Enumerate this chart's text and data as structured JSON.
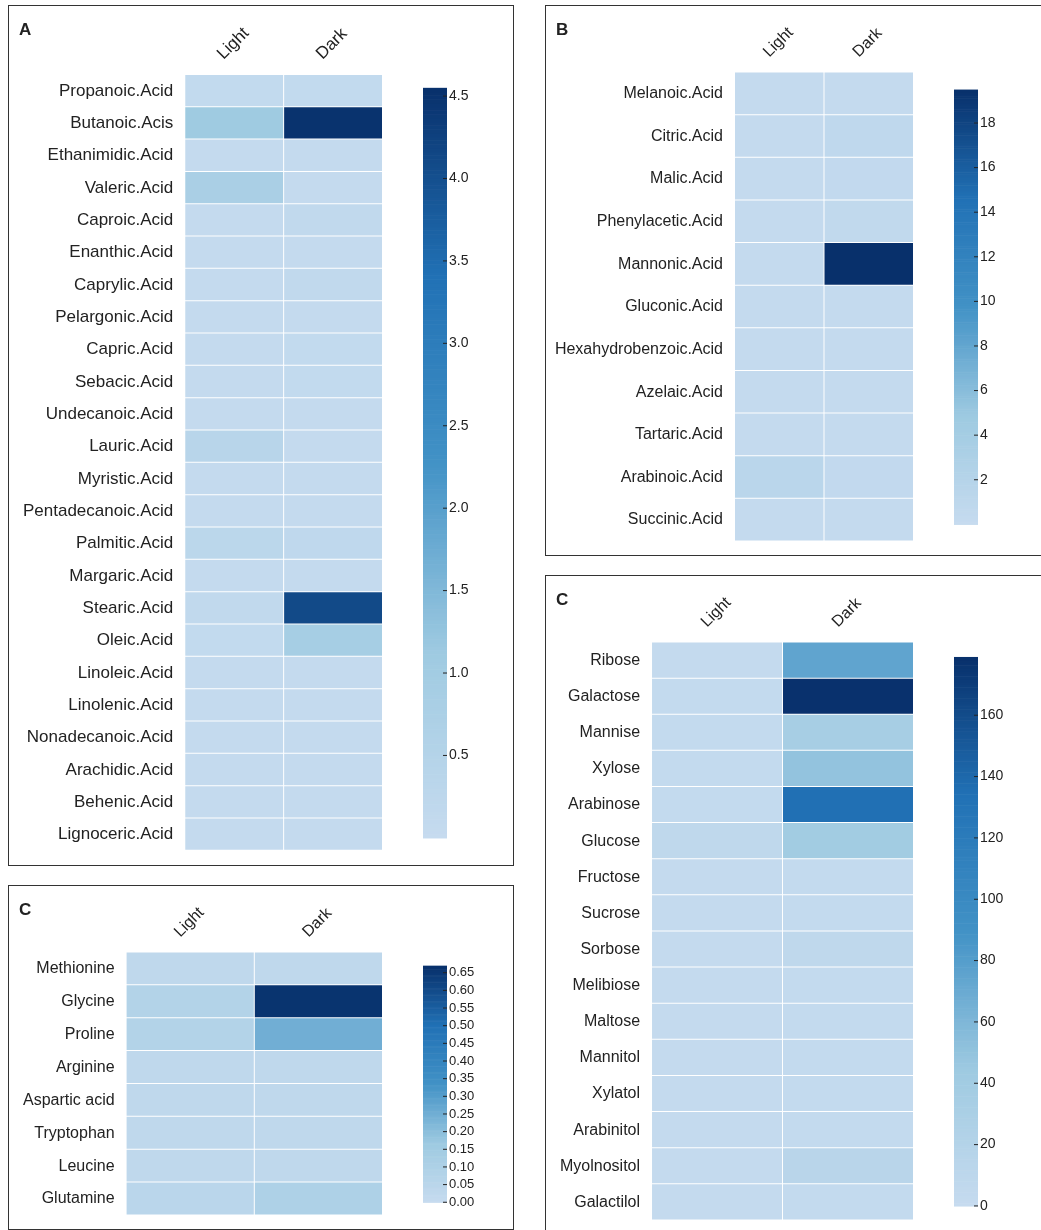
{
  "chart_data": [
    {
      "type": "heatmap",
      "title": "A",
      "categories": [
        "Light",
        "Dark"
      ],
      "y_categories": [
        "Propanoic.Acid",
        "Butanoic.Acis",
        "Ethanimidic.Acid",
        "Valeric.Acid",
        "Caproic.Acid",
        "Enanthic.Acid",
        "Caprylic.Acid",
        "Pelargonic.Acid",
        "Capric.Acid",
        "Sebacic.Acid",
        "Undecanoic.Acid",
        "Lauric.Acid",
        "Myristic.Acid",
        "Pentadecanoic.Acid",
        "Palmitic.Acid",
        "Margaric.Acid",
        "Stearic.Acid",
        "Oleic.Acid",
        "Linoleic.Acid",
        "Linolenic.Acid",
        "Nonadecanoic.Acid",
        "Arachidic.Acid",
        "Behenic.Acid",
        "Lignoceric.Acid"
      ],
      "cells": [
        [
          0.1,
          0.1
        ],
        [
          1.1,
          4.5
        ],
        [
          0.05,
          0.05
        ],
        [
          0.8,
          0.05
        ],
        [
          0.05,
          0.15
        ],
        [
          0.05,
          0.05
        ],
        [
          0.05,
          0.15
        ],
        [
          0.05,
          0.05
        ],
        [
          0.05,
          0.1
        ],
        [
          0.05,
          0.1
        ],
        [
          0.05,
          0.05
        ],
        [
          0.4,
          0.05
        ],
        [
          0.05,
          0.05
        ],
        [
          0.05,
          0.05
        ],
        [
          0.3,
          0.2
        ],
        [
          0.05,
          0.05
        ],
        [
          0.15,
          4.1
        ],
        [
          0.1,
          0.9
        ],
        [
          0.05,
          0.05
        ],
        [
          0.05,
          0.05
        ],
        [
          0.05,
          0.05
        ],
        [
          0.05,
          0.05
        ],
        [
          0.05,
          0.05
        ],
        [
          0.05,
          0.05
        ]
      ],
      "clim": [
        0,
        4.55
      ],
      "cticks": [
        0.5,
        {
          "value": 1,
          "label": "1.0"
        },
        1.5,
        {
          "value": 2,
          "label": "2.0"
        },
        2.5,
        {
          "value": 3,
          "label": "3.0"
        },
        3.5,
        {
          "value": 4,
          "label": "4.0"
        },
        4.5
      ]
    },
    {
      "type": "heatmap",
      "title": "B",
      "categories": [
        "Light",
        "Dark"
      ],
      "y_categories": [
        "Melanoic.Acid",
        "Citric.Acid",
        "Malic.Acid",
        "Phenylacetic.Acid",
        "Mannonic.Acid",
        "Gluconic.Acid",
        "Hexahydrobenzoic.Acid",
        "Azelaic.Acid",
        "Tartaric.Acid",
        "Arabinoic.Acid",
        "Succinic.Acid"
      ],
      "cells": [
        [
          0.3,
          0.3
        ],
        [
          0.3,
          0.8
        ],
        [
          0.3,
          0.5
        ],
        [
          0.3,
          0.6
        ],
        [
          0.3,
          19.5
        ],
        [
          0.3,
          0.3
        ],
        [
          0.3,
          0.3
        ],
        [
          0.3,
          0.3
        ],
        [
          0.3,
          0.3
        ],
        [
          1.5,
          0.5
        ],
        [
          0.3,
          0.3
        ]
      ],
      "clim": [
        0,
        19.5
      ],
      "cticks": [
        2,
        4,
        6,
        8,
        10,
        12,
        14,
        16,
        18
      ]
    },
    {
      "type": "heatmap",
      "title": "C",
      "categories": [
        "Light",
        "Dark"
      ],
      "y_categories": [
        "Ribose",
        "Galactose",
        "Mannise",
        "Xylose",
        "Arabinose",
        "Glucose",
        "Fructose",
        "Sucrose",
        "Sorbose",
        "Melibiose",
        "Maltose",
        "Mannitol",
        "Xylatol",
        "Arabinitol",
        "Myolnositol",
        "Galactilol"
      ],
      "cells": [
        [
          2,
          75
        ],
        [
          3,
          178
        ],
        [
          3,
          35
        ],
        [
          3,
          50
        ],
        [
          3,
          135
        ],
        [
          8,
          40
        ],
        [
          2,
          3
        ],
        [
          2,
          3
        ],
        [
          2,
          8
        ],
        [
          2,
          3
        ],
        [
          2,
          3
        ],
        [
          2,
          3
        ],
        [
          2,
          3
        ],
        [
          2,
          3
        ],
        [
          2,
          15
        ],
        [
          2,
          3
        ]
      ],
      "clim": [
        0,
        179
      ],
      "cticks": [
        0,
        20,
        40,
        60,
        80,
        100,
        120,
        140,
        160
      ]
    },
    {
      "type": "heatmap",
      "title": "C",
      "categories": [
        "Light",
        "Dark"
      ],
      "y_categories": [
        "Methionine",
        "Glycine",
        "Proline",
        "Arginine",
        "Aspartic acid",
        "Tryptophan",
        "Leucine",
        "Glutamine"
      ],
      "cells": [
        [
          0.03,
          0.03
        ],
        [
          0.08,
          0.66
        ],
        [
          0.08,
          0.25
        ],
        [
          0.03,
          0.03
        ],
        [
          0.03,
          0.03
        ],
        [
          0.03,
          0.03
        ],
        [
          0.03,
          0.03
        ],
        [
          0.05,
          0.1
        ]
      ],
      "clim": [
        0,
        0.67
      ],
      "cticks": [
        {
          "value": 0,
          "label": "0.00"
        },
        {
          "value": 0.05,
          "label": "0.05"
        },
        {
          "value": 0.1,
          "label": "0.10"
        },
        {
          "value": 0.15,
          "label": "0.15"
        },
        {
          "value": 0.2,
          "label": "0.20"
        },
        {
          "value": 0.25,
          "label": "0.25"
        },
        {
          "value": 0.3,
          "label": "0.30"
        },
        {
          "value": 0.35,
          "label": "0.35"
        },
        {
          "value": 0.4,
          "label": "0.40"
        },
        {
          "value": 0.45,
          "label": "0.45"
        },
        {
          "value": 0.5,
          "label": "0.50"
        },
        {
          "value": 0.55,
          "label": "0.55"
        },
        {
          "value": 0.6,
          "label": "0.60"
        },
        {
          "value": 0.65,
          "label": "0.65"
        }
      ]
    }
  ]
}
